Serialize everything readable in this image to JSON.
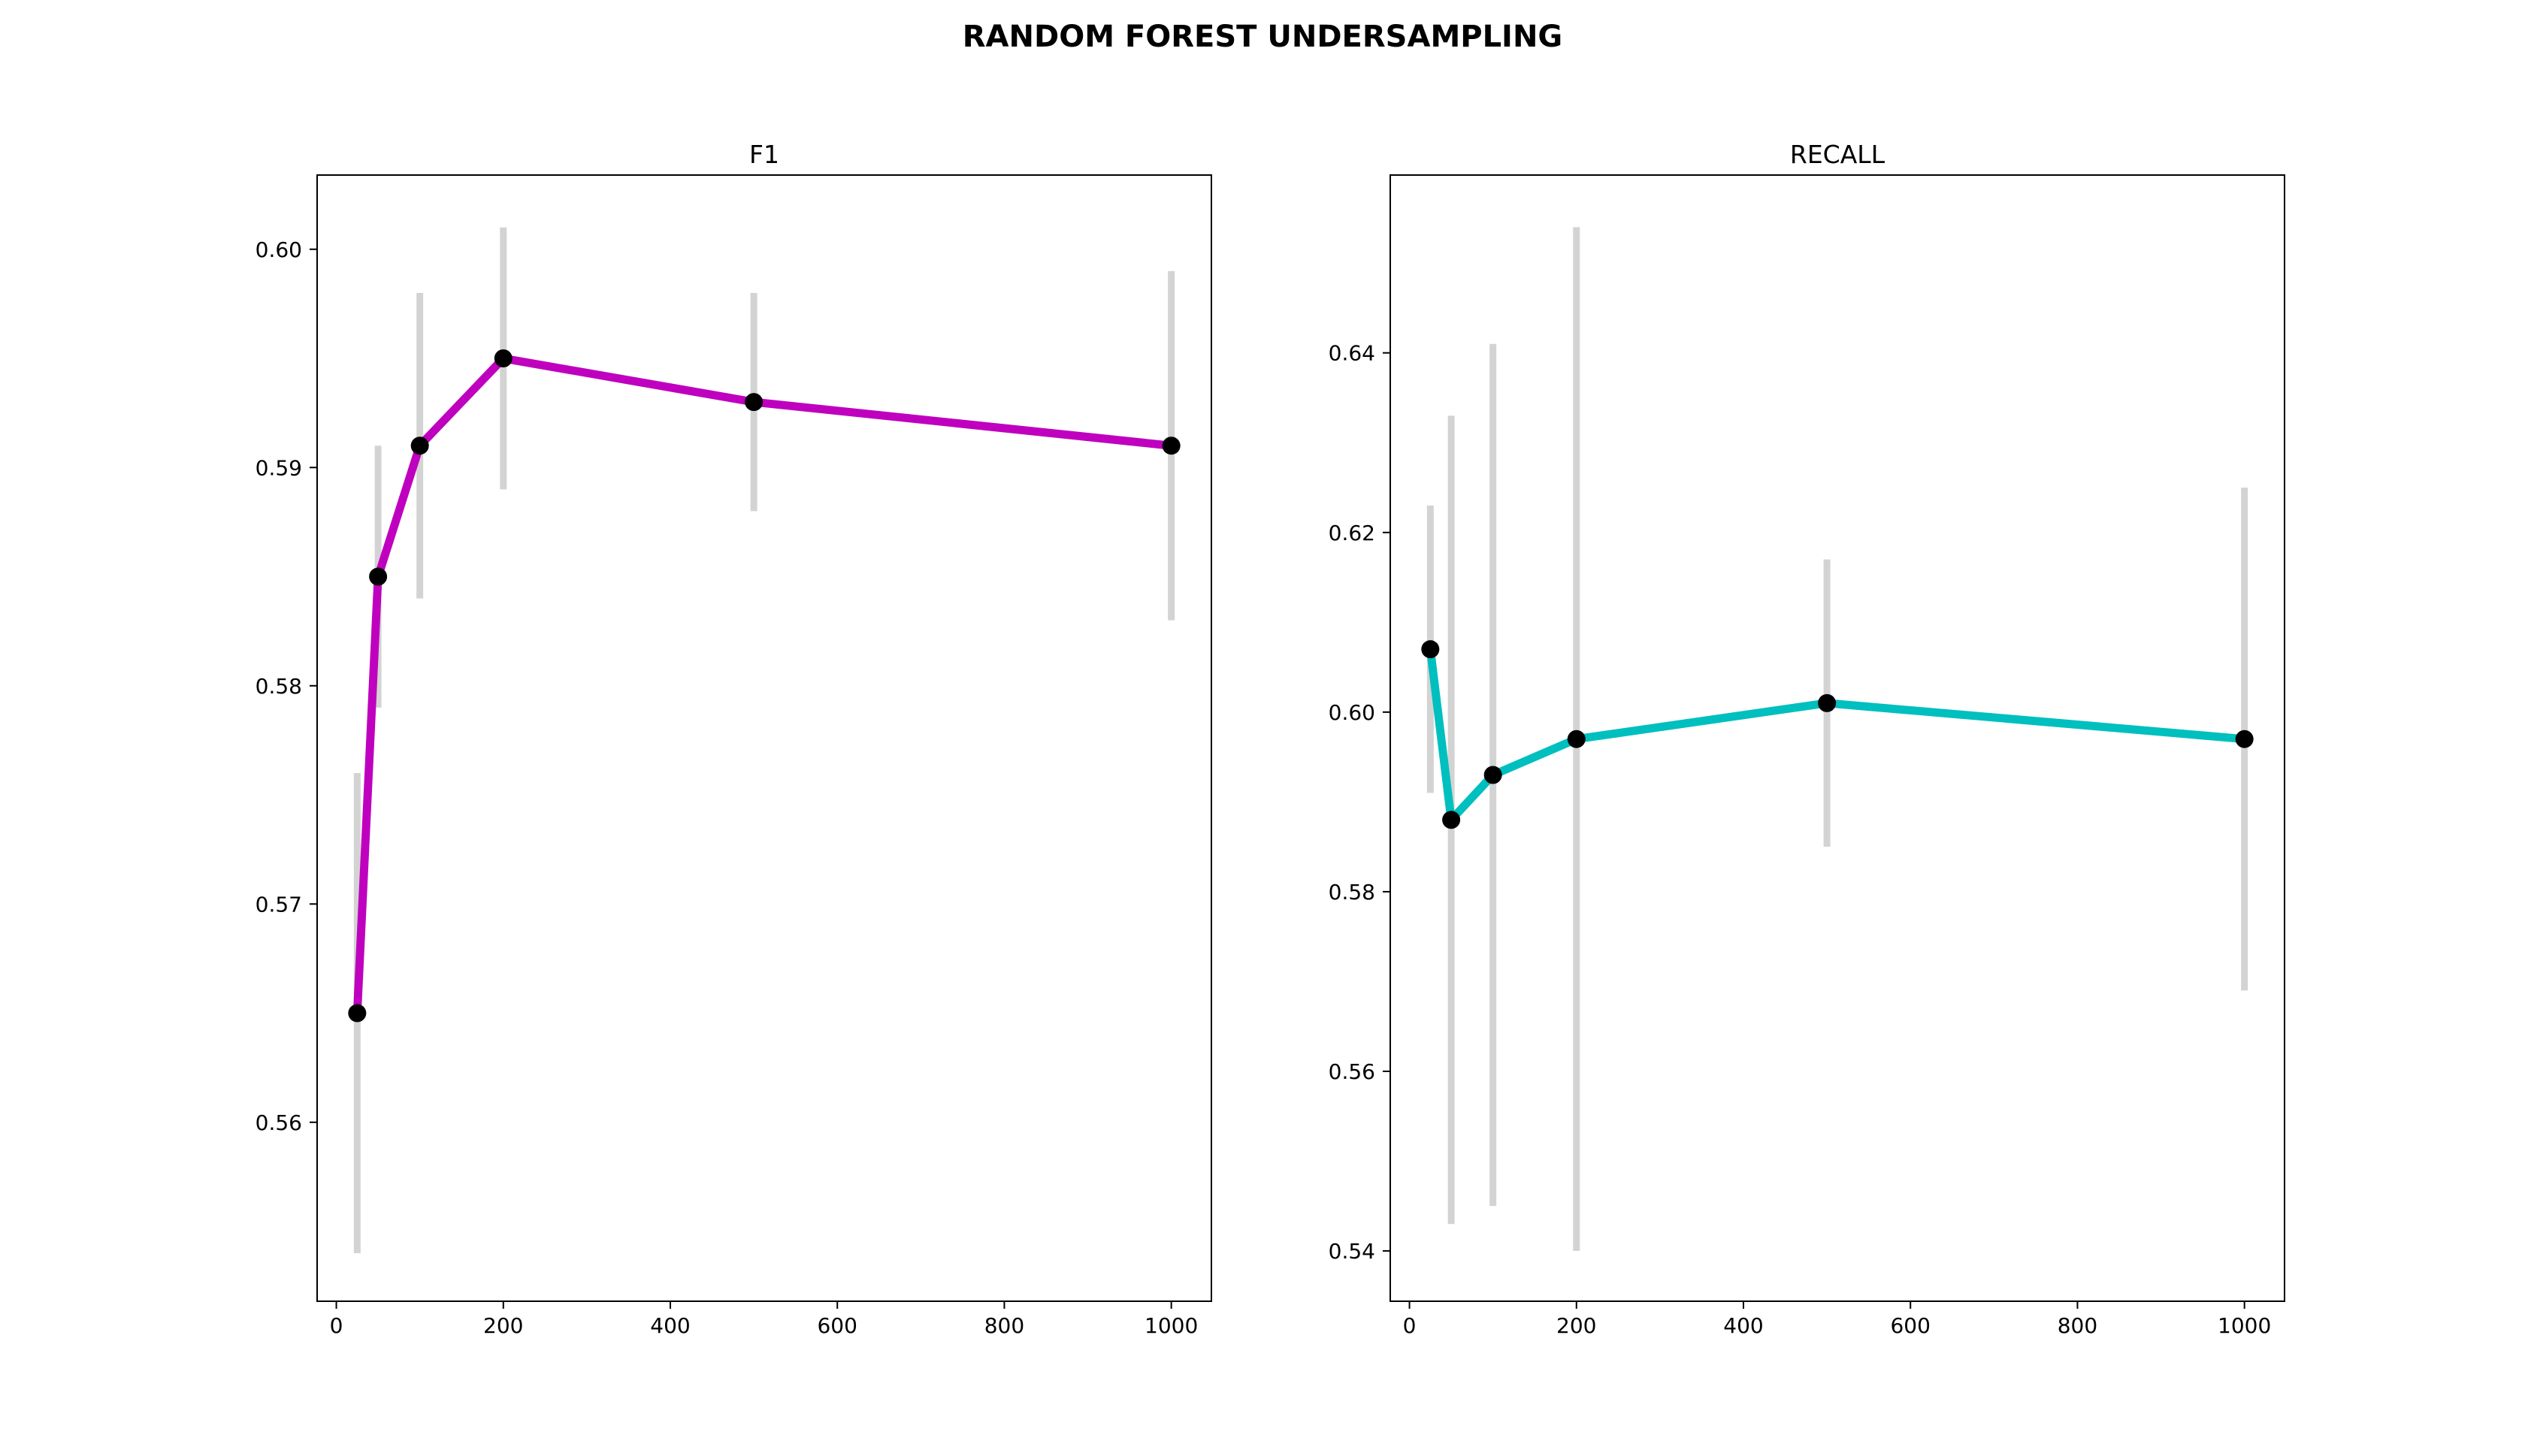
{
  "suptitle": "RANDOM FOREST UNDERSAMPLING",
  "colors": {
    "f1_line": "#bf00bf",
    "recall_line": "#00bfbf",
    "marker": "#000000",
    "errorbar": "#d3d3d3",
    "axes": "#000000",
    "background": "#ffffff"
  },
  "chart_data": [
    {
      "type": "line",
      "title": "F1",
      "xlabel": "",
      "ylabel": "",
      "x": [
        25,
        50,
        100,
        200,
        500,
        1000
      ],
      "series": [
        {
          "values": [
            0.565,
            0.585,
            0.591,
            0.595,
            0.593,
            0.591
          ],
          "err_low": [
            0.554,
            0.579,
            0.584,
            0.589,
            0.588,
            0.583
          ],
          "err_high": [
            0.576,
            0.591,
            0.598,
            0.601,
            0.598,
            0.599
          ]
        }
      ],
      "xlim": [
        -23,
        1048
      ],
      "ylim": [
        0.5518,
        0.6034
      ],
      "xticks": [
        0,
        200,
        400,
        600,
        800,
        1000
      ],
      "yticks": [
        0.56,
        0.57,
        0.58,
        0.59,
        0.6
      ],
      "xtick_labels": [
        "0",
        "200",
        "400",
        "600",
        "800",
        "1000"
      ],
      "ytick_labels": [
        "0.56",
        "0.57",
        "0.58",
        "0.59",
        "0.60"
      ],
      "grid": false,
      "line_color": "#bf00bf"
    },
    {
      "type": "line",
      "title": "RECALL",
      "xlabel": "",
      "ylabel": "",
      "x": [
        25,
        50,
        100,
        200,
        500,
        1000
      ],
      "series": [
        {
          "values": [
            0.607,
            0.588,
            0.593,
            0.597,
            0.601,
            0.597
          ],
          "err_low": [
            0.591,
            0.543,
            0.545,
            0.54,
            0.585,
            0.569
          ],
          "err_high": [
            0.623,
            0.633,
            0.641,
            0.654,
            0.617,
            0.625
          ]
        }
      ],
      "xlim": [
        -23,
        1048
      ],
      "ylim": [
        0.5344,
        0.6598
      ],
      "xticks": [
        0,
        200,
        400,
        600,
        800,
        1000
      ],
      "yticks": [
        0.54,
        0.56,
        0.58,
        0.6,
        0.62,
        0.64
      ],
      "xtick_labels": [
        "0",
        "200",
        "400",
        "600",
        "800",
        "1000"
      ],
      "ytick_labels": [
        "0.54",
        "0.56",
        "0.58",
        "0.60",
        "0.62",
        "0.64"
      ],
      "grid": false,
      "line_color": "#00bfbf"
    }
  ]
}
